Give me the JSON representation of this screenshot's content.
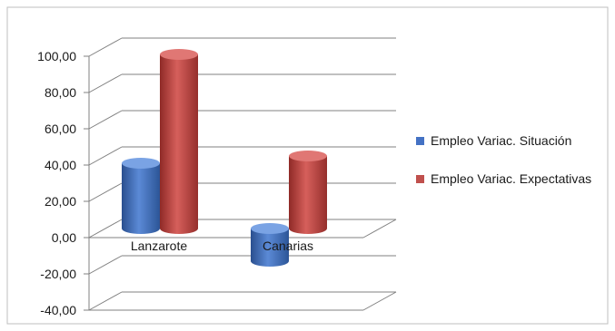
{
  "chart_data": {
    "type": "bar",
    "categories": [
      "Lanzarote",
      "Canarias"
    ],
    "series": [
      {
        "name": "Empleo Variac. Situación",
        "values": [
          36,
          -18
        ],
        "color": "#4472c4"
      },
      {
        "name": "Empleo Variac. Expectativas",
        "values": [
          96,
          40
        ],
        "color": "#c0504d"
      }
    ],
    "y_ticks": [
      "100,00",
      "80,00",
      "60,00",
      "40,00",
      "20,00",
      "0,00",
      "-20,00",
      "-40,00"
    ],
    "ylim": [
      -40,
      100
    ],
    "grid": true,
    "legend_position": "right"
  }
}
